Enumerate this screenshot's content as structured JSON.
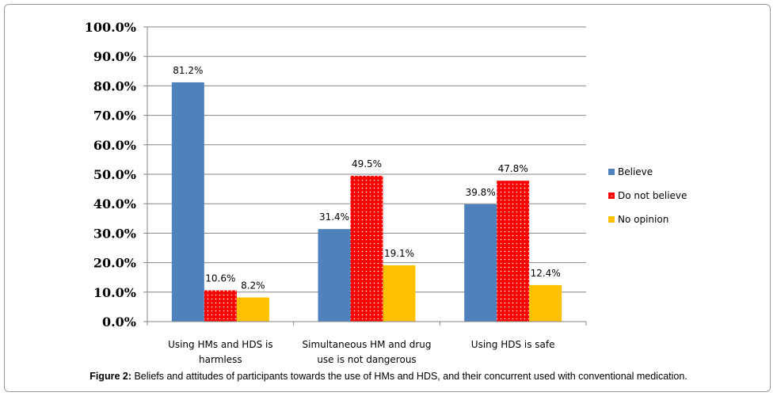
{
  "chart_data": {
    "type": "bar",
    "categories": [
      [
        "Using HMs and HDS is",
        "harmless"
      ],
      [
        "Simultaneous HM and drug",
        "use is not dangerous"
      ],
      [
        "Using HDS is safe"
      ]
    ],
    "series": [
      {
        "name": "Believe",
        "values": [
          81.2,
          31.4,
          39.8
        ],
        "labels": [
          "81.2%",
          "31.4%",
          "39.8%"
        ],
        "color": "#4f81bd",
        "pattern": "none"
      },
      {
        "name": "Do not believe",
        "values": [
          10.6,
          49.5,
          47.8
        ],
        "labels": [
          "10.6%",
          "49.5%",
          "47.8%"
        ],
        "color": "#ff0000",
        "pattern": "dots"
      },
      {
        "name": "No opinion",
        "values": [
          8.2,
          19.1,
          12.4
        ],
        "labels": [
          "8.2%",
          "19.1%",
          "12.4%"
        ],
        "color": "#ffc000",
        "pattern": "none"
      }
    ],
    "yticks": [
      "0.0%",
      "10.0%",
      "20.0%",
      "30.0%",
      "40.0%",
      "50.0%",
      "60.0%",
      "70.0%",
      "80.0%",
      "90.0%",
      "100.0%"
    ],
    "ylim": [
      0,
      100
    ],
    "grid": true,
    "legend_position": "right"
  },
  "caption": {
    "label": "Figure 2:",
    "text": " Beliefs and attitudes of participants towards the use of HMs and HDS, and their concurrent used with conventional medication."
  }
}
